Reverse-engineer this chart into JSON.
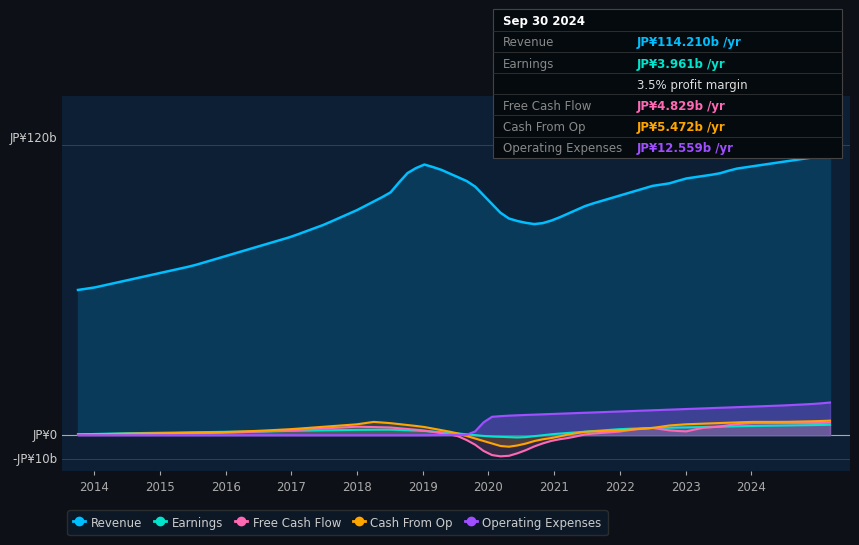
{
  "bg_color": "#0d1117",
  "plot_bg_color": "#0d1f35",
  "ylabel_120": "JP¥120b",
  "ylabel_0": "JP¥0",
  "ylabel_neg10": "-JP¥10b",
  "xlim_start": 2013.5,
  "xlim_end": 2025.5,
  "ylim_min": -15,
  "ylim_max": 140,
  "xticks": [
    2014,
    2015,
    2016,
    2017,
    2018,
    2019,
    2020,
    2021,
    2022,
    2023,
    2024
  ],
  "revenue_color": "#00bfff",
  "earnings_color": "#00e5cc",
  "fcf_color": "#ff69b4",
  "cashop_color": "#ffa500",
  "opex_color": "#9f4fff",
  "fill_revenue_color": "#0a3a5a",
  "grid_color": "#2a4a6a",
  "legend_items": [
    {
      "label": "Revenue",
      "color": "#00bfff"
    },
    {
      "label": "Earnings",
      "color": "#00e5cc"
    },
    {
      "label": "Free Cash Flow",
      "color": "#ff69b4"
    },
    {
      "label": "Cash From Op",
      "color": "#ffa500"
    },
    {
      "label": "Operating Expenses",
      "color": "#9f4fff"
    }
  ],
  "table_rows": [
    {
      "label": "Sep 30 2024",
      "value": "",
      "label_color": "#ffffff",
      "value_color": "#ffffff",
      "bold_label": true,
      "bold_value": false
    },
    {
      "label": "Revenue",
      "value": "JP¥114.210b /yr",
      "label_color": "#888888",
      "value_color": "#00bfff",
      "bold_label": false,
      "bold_value": true
    },
    {
      "label": "Earnings",
      "value": "JP¥3.961b /yr",
      "label_color": "#888888",
      "value_color": "#00e5cc",
      "bold_label": false,
      "bold_value": true
    },
    {
      "label": "",
      "value": "3.5% profit margin",
      "label_color": "#888888",
      "value_color": "#dddddd",
      "bold_label": false,
      "bold_value": false
    },
    {
      "label": "Free Cash Flow",
      "value": "JP¥4.829b /yr",
      "label_color": "#888888",
      "value_color": "#ff69b4",
      "bold_label": false,
      "bold_value": true
    },
    {
      "label": "Cash From Op",
      "value": "JP¥5.472b /yr",
      "label_color": "#888888",
      "value_color": "#ffa500",
      "bold_label": false,
      "bold_value": true
    },
    {
      "label": "Operating Expenses",
      "value": "JP¥12.559b /yr",
      "label_color": "#888888",
      "value_color": "#9f4fff",
      "bold_label": false,
      "bold_value": true
    }
  ]
}
